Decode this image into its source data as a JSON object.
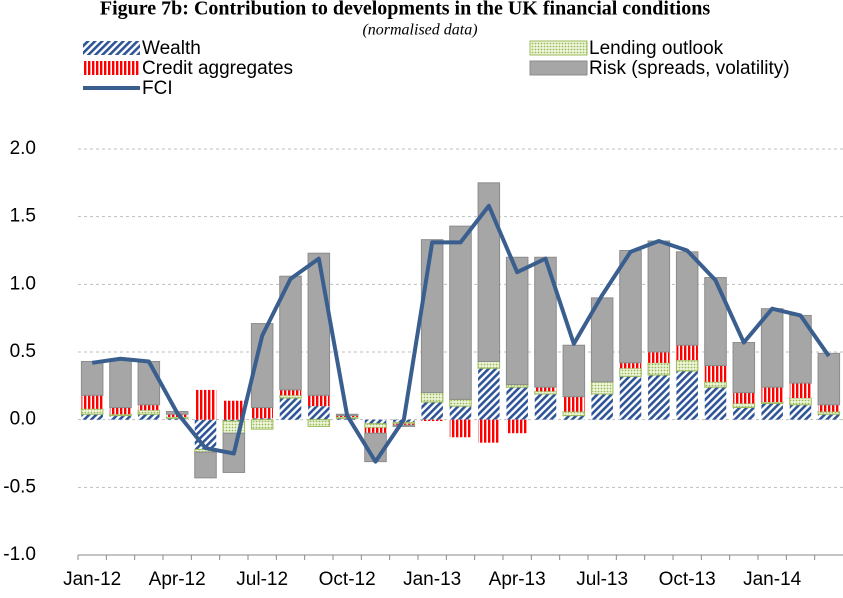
{
  "chart_data": {
    "type": "stacked-bar-line",
    "title": "Figure 7b: Contribution to developments in the UK financial conditions",
    "subtitle": "(normalised data)",
    "categories": [
      "Jan-12",
      null,
      null,
      "Apr-12",
      null,
      null,
      "Jul-12",
      null,
      null,
      "Oct-12",
      null,
      null,
      "Jan-13",
      null,
      null,
      "Apr-13",
      null,
      null,
      "Jul-13",
      null,
      null,
      "Oct-13",
      null,
      null,
      "Jan-14",
      null,
      null
    ],
    "series": [
      {
        "name": "Wealth",
        "color": "#2f5597",
        "values": [
          0.04,
          0.03,
          0.04,
          0.01,
          -0.22,
          -0.01,
          0.01,
          0.16,
          0.1,
          0.01,
          -0.03,
          -0.02,
          0.13,
          0.1,
          0.38,
          0.24,
          0.19,
          0.03,
          0.19,
          0.32,
          0.33,
          0.36,
          0.24,
          0.09,
          0.12,
          0.11,
          0.04
        ]
      },
      {
        "name": "Lending outlook",
        "color": "#9bbb59",
        "values": [
          0.04,
          0.01,
          0.03,
          0.01,
          -0.02,
          -0.09,
          -0.07,
          0.02,
          -0.05,
          0.01,
          -0.03,
          -0.01,
          0.07,
          0.05,
          0.05,
          0.02,
          0.02,
          0.03,
          0.09,
          0.06,
          0.09,
          0.08,
          0.04,
          0.03,
          0.01,
          0.05,
          0.02
        ]
      },
      {
        "name": "Credit aggregates",
        "color": "#ff0000",
        "values": [
          0.1,
          0.05,
          0.04,
          0.02,
          0.22,
          0.14,
          0.08,
          0.04,
          0.08,
          0.01,
          -0.04,
          -0.01,
          -0.01,
          -0.13,
          -0.17,
          -0.1,
          0.03,
          0.11,
          0.0,
          0.04,
          0.08,
          0.11,
          0.12,
          0.08,
          0.11,
          0.11,
          0.05
        ]
      },
      {
        "name": "Risk (spreads, volatility)",
        "color": "#a6a6a6",
        "values": [
          0.25,
          0.36,
          0.32,
          0.02,
          -0.19,
          -0.29,
          0.62,
          0.84,
          1.05,
          0.01,
          -0.21,
          -0.01,
          1.13,
          1.28,
          1.32,
          0.94,
          0.96,
          0.38,
          0.62,
          0.83,
          0.82,
          0.69,
          0.65,
          0.37,
          0.58,
          0.5,
          0.38
        ]
      },
      {
        "name": "FCI",
        "color": "#3a5f8f",
        "kind": "line",
        "values": [
          0.42,
          0.45,
          0.43,
          0.05,
          -0.21,
          -0.25,
          0.62,
          1.04,
          1.19,
          0.03,
          -0.31,
          0.0,
          1.31,
          1.31,
          1.58,
          1.09,
          1.19,
          0.56,
          0.92,
          1.24,
          1.32,
          1.25,
          1.03,
          0.57,
          0.82,
          0.77,
          0.47
        ]
      }
    ],
    "ylim": [
      -1,
      2
    ],
    "yticks": [
      {
        "value": -1,
        "label": "-1.0"
      },
      -0.5,
      {
        "value": 0,
        "label": "0.0"
      },
      0.5,
      {
        "value": 1,
        "label": "1.0"
      },
      1.5,
      {
        "value": 2,
        "label": "2.0"
      }
    ],
    "grid": true
  }
}
